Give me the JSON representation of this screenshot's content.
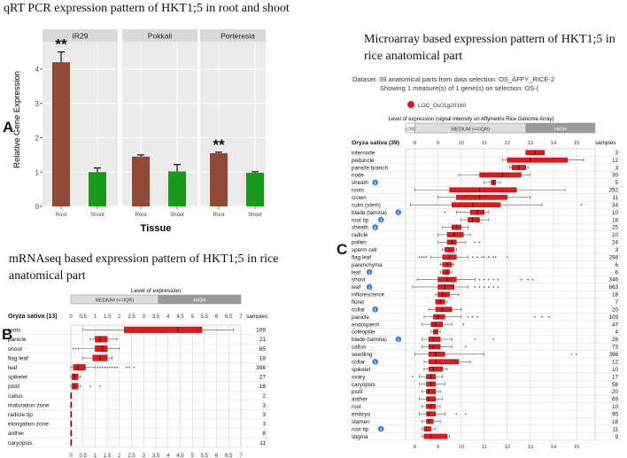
{
  "titles": {
    "qrt": "qRT PCR expression pattern of HKT1;5 in root and shoot",
    "micro_line1": "Microarray based expression pattern of HKT1;5 in",
    "micro_line2": "rice anatomical part",
    "mrna_line1": "mRNAseq based expression pattern of HKT1;5 in rice",
    "mrna_line2": "anatomical part"
  },
  "panel_labels": {
    "a": "A",
    "b": "B",
    "c": "C"
  },
  "colors": {
    "bar_brown": "#8e4a35",
    "bar_green": "#1a9a1a",
    "box_red": "#e01919",
    "strip": "#d9d9d9",
    "panel_bg": "#ebebeb",
    "info_blue": "#3f7fd4",
    "medium_band": "#dddddd",
    "high_band": "#9a9a9a"
  },
  "chart_data": [
    {
      "type": "bar",
      "panel": "A",
      "ylabel": "Relative Gene Expression",
      "xlabel": "Tissue",
      "ylim": [
        0,
        4.8
      ],
      "yticks": [
        0,
        1,
        2,
        3,
        4
      ],
      "categories": [
        "Root",
        "Shoot"
      ],
      "facets": [
        {
          "name": "IR29",
          "values": [
            4.2,
            1.0
          ],
          "errors": [
            0.3,
            0.12
          ],
          "annotation": "**"
        },
        {
          "name": "Pokkali",
          "values": [
            1.45,
            1.02
          ],
          "errors": [
            0.05,
            0.2
          ],
          "annotation": ""
        },
        {
          "name": "Porteresia",
          "values": [
            1.55,
            0.98
          ],
          "errors": [
            0.03,
            0.03
          ],
          "annotation": "**"
        }
      ]
    },
    {
      "type": "boxplot",
      "panel": "B",
      "header": "Level of expression",
      "band_labels": {
        "medium": "MEDIUM (<=IQR)",
        "high": "HIGH"
      },
      "band_ranges": {
        "medium": [
          0,
          3.6
        ],
        "high": [
          3.6,
          7
        ]
      },
      "organism": "Oryza sativa (13)",
      "samples_label": "samples",
      "xlim": [
        0,
        7
      ],
      "ticks": [
        "0",
        "0.5",
        "1",
        "1.5",
        "2",
        "2.5",
        "3",
        "3.5",
        "4",
        "4.5",
        "5",
        "5.5",
        "6",
        "6.5",
        "7"
      ],
      "rows": [
        {
          "label": "roots",
          "samples": "109",
          "q1": 2.2,
          "med": 4.4,
          "q3": 5.4,
          "wlo": 0.5,
          "whi": 6.7,
          "outliers": []
        },
        {
          "label": "panicle",
          "samples": "21",
          "q1": 1.0,
          "med": 1.2,
          "q3": 1.5,
          "wlo": 0.8,
          "whi": 1.9,
          "outliers": []
        },
        {
          "label": "shoot",
          "samples": "85",
          "q1": 1.0,
          "med": 1.3,
          "q3": 1.5,
          "wlo": 0.3,
          "whi": 2.0,
          "outliers": [
            0.1,
            0.2
          ]
        },
        {
          "label": "flag leaf",
          "samples": "18",
          "q1": 0.9,
          "med": 1.2,
          "q3": 1.5,
          "wlo": 0.5,
          "whi": 1.7,
          "outliers": []
        },
        {
          "label": "leaf",
          "samples": "398",
          "q1": 0.1,
          "med": 0.3,
          "q3": 0.6,
          "wlo": 0.0,
          "whi": 1.0,
          "outliers": [
            1.1,
            1.2,
            1.3,
            1.4,
            1.5,
            1.6,
            1.7,
            1.8,
            1.9,
            2.3,
            2.4,
            2.6
          ]
        },
        {
          "label": "spikelet",
          "samples": "27",
          "q1": 0.05,
          "med": 0.15,
          "q3": 0.3,
          "wlo": 0.0,
          "whi": 0.4,
          "outliers": []
        },
        {
          "label": "pistil",
          "samples": "18",
          "q1": 0.05,
          "med": 0.15,
          "q3": 0.3,
          "wlo": 0.0,
          "whi": 0.4,
          "outliers": [
            0.8,
            1.2
          ]
        },
        {
          "label": "callus",
          "samples": "2",
          "q1": 0,
          "med": 0,
          "q3": 0.02,
          "wlo": 0,
          "whi": 0.02,
          "outliers": []
        },
        {
          "label": "maturation zone",
          "samples": "3",
          "q1": 0,
          "med": 0,
          "q3": 0.02,
          "wlo": 0,
          "whi": 0.02,
          "outliers": []
        },
        {
          "label": "radicle tip",
          "samples": "3",
          "q1": 0,
          "med": 0,
          "q3": 0.02,
          "wlo": 0,
          "whi": 0.02,
          "outliers": []
        },
        {
          "label": "elongation zone",
          "samples": "3",
          "q1": 0,
          "med": 0,
          "q3": 0.02,
          "wlo": 0,
          "whi": 0.02,
          "outliers": []
        },
        {
          "label": "anther",
          "samples": "8",
          "q1": 0,
          "med": 0,
          "q3": 0.02,
          "wlo": 0,
          "whi": 0.02,
          "outliers": []
        },
        {
          "label": "caryopsis",
          "samples": "11",
          "q1": 0,
          "med": 0,
          "q3": 0.02,
          "wlo": 0,
          "whi": 0.02,
          "outliers": []
        }
      ]
    },
    {
      "type": "boxplot",
      "panel": "C",
      "dataset_line": "Dataset:  39 anatomical parts from data selection: OS_AFFY_RICE-2",
      "showing_line": "Showing 1 measure(s) of 1 gene(s) on selection: OS-(",
      "gene_id": "LOC_Os01g20160",
      "header_prefix": "Level of ",
      "header_highlight": "expression",
      "header_suffix": " (signal intensity on Affymetrix Rice Genome Array)",
      "band_labels": {
        "low": "LOW",
        "medium": "MEDIUM (<=IQR)",
        "high": "HIGH"
      },
      "band_ranges": {
        "low": [
          7.6,
          8.0
        ],
        "medium": [
          8.0,
          12.8
        ],
        "high": [
          12.8,
          15.8
        ]
      },
      "organism": "Oryza sativa (39)",
      "samples_label": "samples",
      "xlim": [
        7.6,
        15.8
      ],
      "ticks": [
        "8",
        "9",
        "10",
        "11",
        "12",
        "13",
        "14",
        "15"
      ],
      "rows": [
        {
          "label": "internode",
          "info": false,
          "samples": "3",
          "q1": 12.8,
          "med": 13.2,
          "q3": 13.6,
          "wlo": 12.8,
          "whi": 13.6,
          "outliers": []
        },
        {
          "label": "peduncle",
          "info": false,
          "samples": "12",
          "q1": 12.0,
          "med": 13.0,
          "q3": 14.6,
          "wlo": 11.8,
          "whi": 15.3,
          "outliers": []
        },
        {
          "label": "panicle branch",
          "info": false,
          "samples": "3",
          "q1": 12.2,
          "med": 12.5,
          "q3": 12.8,
          "wlo": 12.1,
          "whi": 12.9,
          "outliers": []
        },
        {
          "label": "node",
          "info": false,
          "samples": "30",
          "q1": 10.8,
          "med": 11.8,
          "q3": 12.6,
          "wlo": 9.9,
          "whi": 13.0,
          "outliers": []
        },
        {
          "label": "sheath",
          "info": true,
          "samples": "5",
          "q1": 11.3,
          "med": 11.4,
          "q3": 11.5,
          "wlo": 11.0,
          "whi": 11.7,
          "outliers": []
        },
        {
          "label": "roots",
          "info": false,
          "samples": "292",
          "q1": 9.5,
          "med": 10.8,
          "q3": 12.4,
          "wlo": 8.0,
          "whi": 14.5,
          "outliers": []
        },
        {
          "label": "crown",
          "info": false,
          "samples": "11",
          "q1": 9.8,
          "med": 10.8,
          "q3": 12.0,
          "wlo": 9.0,
          "whi": 13.0,
          "outliers": []
        },
        {
          "label": "culm (stem)",
          "info": false,
          "samples": "34",
          "q1": 9.6,
          "med": 10.5,
          "q3": 11.7,
          "wlo": 7.8,
          "whi": 13.5,
          "outliers": [
            15.2
          ]
        },
        {
          "label": "blade (lamina)",
          "info": true,
          "samples": "10",
          "q1": 10.4,
          "med": 10.7,
          "q3": 11.0,
          "wlo": 9.8,
          "whi": 11.2,
          "outliers": [
            9.3
          ]
        },
        {
          "label": "root tip",
          "info": true,
          "samples": "18",
          "q1": 10.3,
          "med": 10.5,
          "q3": 10.8,
          "wlo": 10.0,
          "whi": 11.2,
          "outliers": []
        },
        {
          "label": "sheath",
          "info": true,
          "samples": "25",
          "q1": 9.6,
          "med": 9.8,
          "q3": 10.0,
          "wlo": 9.2,
          "whi": 10.3,
          "outliers": []
        },
        {
          "label": "radicle",
          "info": false,
          "samples": "10",
          "q1": 9.4,
          "med": 9.7,
          "q3": 10.1,
          "wlo": 9.0,
          "whi": 10.4,
          "outliers": []
        },
        {
          "label": "pollen",
          "info": false,
          "samples": "24",
          "q1": 9.4,
          "med": 9.6,
          "q3": 9.8,
          "wlo": 9.0,
          "whi": 10.2,
          "outliers": [
            10.6,
            10.8
          ]
        },
        {
          "label": "sperm cell",
          "info": false,
          "samples": "3",
          "q1": 9.3,
          "med": 9.5,
          "q3": 9.7,
          "wlo": 9.2,
          "whi": 9.8,
          "outliers": []
        },
        {
          "label": "flag leaf",
          "info": false,
          "samples": "298",
          "q1": 9.2,
          "med": 9.5,
          "q3": 9.8,
          "wlo": 8.7,
          "whi": 10.3,
          "outliers": [
            8.2,
            8.3,
            8.4,
            8.5,
            10.5,
            10.7,
            10.9,
            11.0,
            11.2,
            11.4,
            11.5,
            12.0
          ]
        },
        {
          "label": "parenchyma",
          "info": false,
          "samples": "6",
          "q1": 9.2,
          "med": 9.4,
          "q3": 9.6,
          "wlo": 9.1,
          "whi": 9.7,
          "outliers": []
        },
        {
          "label": "leaf",
          "info": true,
          "samples": "6",
          "q1": 9.2,
          "med": 9.4,
          "q3": 9.5,
          "wlo": 9.1,
          "whi": 9.6,
          "outliers": []
        },
        {
          "label": "shoot",
          "info": false,
          "samples": "346",
          "q1": 9.0,
          "med": 9.4,
          "q3": 9.8,
          "wlo": 8.1,
          "whi": 10.6,
          "outliers": [
            10.8,
            11.0,
            11.2,
            11.4,
            11.6,
            12.6,
            12.9,
            13.1
          ]
        },
        {
          "label": "leaf",
          "info": true,
          "samples": "663",
          "q1": 9.0,
          "med": 9.3,
          "q3": 9.7,
          "wlo": 7.9,
          "whi": 10.3,
          "outliers": [
            10.6,
            10.8,
            11.0,
            11.2,
            11.4,
            11.6
          ]
        },
        {
          "label": "inflorescence",
          "info": false,
          "samples": "18",
          "q1": 9.0,
          "med": 9.2,
          "q3": 9.5,
          "wlo": 8.9,
          "whi": 9.9,
          "outliers": []
        },
        {
          "label": "floret",
          "info": false,
          "samples": "7",
          "q1": 8.9,
          "med": 9.1,
          "q3": 9.3,
          "wlo": 8.9,
          "whi": 9.4,
          "outliers": []
        },
        {
          "label": "collar",
          "info": true,
          "samples": "20",
          "q1": 8.9,
          "med": 9.2,
          "q3": 9.6,
          "wlo": 8.6,
          "whi": 10.0,
          "outliers": []
        },
        {
          "label": "panicle",
          "info": false,
          "samples": "109",
          "q1": 8.8,
          "med": 9.0,
          "q3": 9.3,
          "wlo": 8.4,
          "whi": 10.0,
          "outliers": [
            10.3,
            10.5,
            10.7,
            13.2,
            13.5,
            13.8
          ]
        },
        {
          "label": "endosperm",
          "info": false,
          "samples": "47",
          "q1": 8.7,
          "med": 8.9,
          "q3": 9.2,
          "wlo": 8.3,
          "whi": 9.6,
          "outliers": [
            10.1
          ]
        },
        {
          "label": "coleoptile",
          "info": false,
          "samples": "4",
          "q1": 8.8,
          "med": 8.9,
          "q3": 9.0,
          "wlo": 8.7,
          "whi": 9.1,
          "outliers": []
        },
        {
          "label": "blade (lamina)",
          "info": true,
          "samples": "26",
          "q1": 8.6,
          "med": 8.8,
          "q3": 9.1,
          "wlo": 8.3,
          "whi": 9.6,
          "outliers": [
            10.6,
            11.4
          ]
        },
        {
          "label": "callus",
          "info": false,
          "samples": "73",
          "q1": 8.6,
          "med": 8.8,
          "q3": 9.1,
          "wlo": 8.3,
          "whi": 9.6,
          "outliers": [
            10.2
          ]
        },
        {
          "label": "seedling",
          "info": false,
          "samples": "398",
          "q1": 8.6,
          "med": 8.9,
          "q3": 9.3,
          "wlo": 8.0,
          "whi": 11.0,
          "outliers": [
            14.8,
            15.0
          ]
        },
        {
          "label": "collar",
          "info": true,
          "samples": "12",
          "q1": 8.6,
          "med": 8.9,
          "q3": 9.9,
          "wlo": 8.4,
          "whi": 10.4,
          "outliers": []
        },
        {
          "label": "spikelet",
          "info": false,
          "samples": "10",
          "q1": 8.6,
          "med": 8.8,
          "q3": 9.2,
          "wlo": 8.4,
          "whi": 9.4,
          "outliers": []
        },
        {
          "label": "ovary",
          "info": false,
          "samples": "17",
          "q1": 8.5,
          "med": 8.7,
          "q3": 8.9,
          "wlo": 8.2,
          "whi": 9.2,
          "outliers": [
            7.9
          ]
        },
        {
          "label": "caryopsis",
          "info": false,
          "samples": "58",
          "q1": 8.5,
          "med": 8.7,
          "q3": 8.9,
          "wlo": 8.2,
          "whi": 9.3,
          "outliers": []
        },
        {
          "label": "pistil",
          "info": false,
          "samples": "20",
          "q1": 8.5,
          "med": 8.6,
          "q3": 8.9,
          "wlo": 8.3,
          "whi": 9.1,
          "outliers": []
        },
        {
          "label": "anther",
          "info": false,
          "samples": "69",
          "q1": 8.5,
          "med": 8.6,
          "q3": 8.9,
          "wlo": 8.2,
          "whi": 9.2,
          "outliers": []
        },
        {
          "label": "root",
          "info": false,
          "samples": "10",
          "q1": 8.5,
          "med": 8.7,
          "q3": 8.9,
          "wlo": 8.3,
          "whi": 9.1,
          "outliers": []
        },
        {
          "label": "embryo",
          "info": false,
          "samples": "95",
          "q1": 8.5,
          "med": 8.6,
          "q3": 8.9,
          "wlo": 8.2,
          "whi": 9.3,
          "outliers": [
            9.8,
            10.2
          ]
        },
        {
          "label": "stamen",
          "info": false,
          "samples": "18",
          "q1": 8.5,
          "med": 8.6,
          "q3": 8.8,
          "wlo": 8.3,
          "whi": 9.1,
          "outliers": []
        },
        {
          "label": "root tip",
          "info": true,
          "samples": "11",
          "q1": 8.4,
          "med": 8.5,
          "q3": 8.7,
          "wlo": 8.3,
          "whi": 8.9,
          "outliers": []
        },
        {
          "label": "stigma",
          "info": false,
          "samples": "9",
          "q1": 8.4,
          "med": 8.7,
          "q3": 9.4,
          "wlo": 8.3,
          "whi": 9.5,
          "outliers": []
        }
      ]
    }
  ]
}
